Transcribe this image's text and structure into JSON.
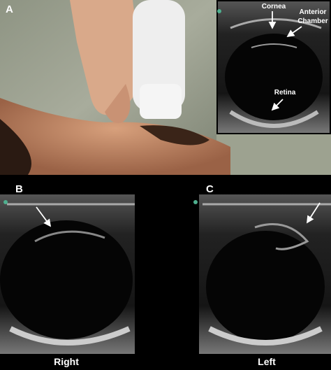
{
  "panel_a": {
    "label": "A",
    "annotations": {
      "cornea": "Cornea",
      "anterior_chamber": [
        "Anterior",
        "Chamber"
      ],
      "retina": "Retina"
    }
  },
  "panel_b": {
    "label": "B",
    "caption": "Right"
  },
  "panel_c": {
    "label": "C",
    "caption": "Left"
  }
}
